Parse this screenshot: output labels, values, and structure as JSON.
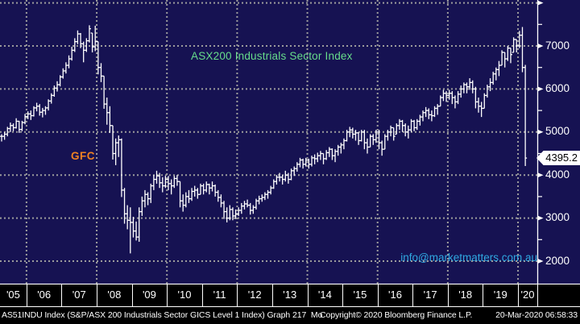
{
  "annotations": {
    "title": "ASX200 Industrials Sector Index",
    "gfc": "GFC",
    "email": "info@marketmatters.com.au",
    "last_price": "4395.2"
  },
  "status_bar": {
    "left": "AS51INDU Index (S&P/ASX 200 Industrials Sector GICS Level 1 Index) Graph 217  Mo",
    "center": "Copyright© 2020 Bloomberg Finance L.P.",
    "right": "20-Mar-2020 06:58:33"
  },
  "colors": {
    "background": "#161252",
    "grid": "#9c9c9c",
    "bars": "#ffffff",
    "title_green": "#67dd8b",
    "gfc_orange": "#f08222",
    "email_blue": "#2fa8e1",
    "strip_black": "#000000",
    "price_tag_bg": "#ffffff"
  },
  "chart_data": {
    "type": "ohlc_bar",
    "title": "ASX200 Industrials Sector Index",
    "frequency": "monthly",
    "x_start": "2005-04",
    "x_end": "2020-03",
    "x_tick_labels": [
      "'05",
      "'06",
      "'07",
      "'08",
      "'09",
      "'10",
      "'11",
      "'12",
      "'13",
      "'14",
      "'15",
      "'16",
      "'17",
      "'18",
      "'19",
      "'20"
    ],
    "grid_vertical_every_years": 2,
    "ylim": [
      1480,
      8070
    ],
    "y_gridlines": [
      2000,
      3000,
      4000,
      5000,
      6000,
      7000,
      8000
    ],
    "y_ticks_labeled": [
      7000,
      6000,
      5000,
      4000,
      3000,
      2000
    ],
    "y_ticks_major": [
      8000,
      7000,
      6000,
      5000,
      4000,
      3000,
      2000
    ],
    "y_ticks_minor": [
      7500,
      6500,
      5500,
      4500,
      3500,
      2500
    ],
    "last_price": 4395.2,
    "legend_position": "none",
    "bars_hlc": [
      [
        4950,
        4780,
        4900
      ],
      [
        5000,
        4820,
        4950
      ],
      [
        5120,
        4900,
        5080
      ],
      [
        5220,
        5000,
        5150
      ],
      [
        5200,
        5020,
        5100
      ],
      [
        5320,
        5080,
        5250
      ],
      [
        5260,
        4980,
        5060
      ],
      [
        5260,
        5020,
        5220
      ],
      [
        5420,
        5180,
        5360
      ],
      [
        5480,
        5300,
        5420
      ],
      [
        5500,
        5280,
        5380
      ],
      [
        5600,
        5360,
        5560
      ],
      [
        5680,
        5480,
        5600
      ],
      [
        5650,
        5380,
        5460
      ],
      [
        5560,
        5340,
        5500
      ],
      [
        5600,
        5400,
        5560
      ],
      [
        5760,
        5500,
        5720
      ],
      [
        5900,
        5660,
        5850
      ],
      [
        6080,
        5820,
        6020
      ],
      [
        6180,
        5940,
        6100
      ],
      [
        6320,
        6060,
        6280
      ],
      [
        6480,
        6240,
        6420
      ],
      [
        6620,
        6360,
        6550
      ],
      [
        6780,
        6480,
        6700
      ],
      [
        6980,
        6660,
        6900
      ],
      [
        7180,
        6860,
        7100
      ],
      [
        7360,
        7040,
        7280
      ],
      [
        7300,
        6950,
        7050
      ],
      [
        7100,
        6620,
        6900
      ],
      [
        7180,
        6860,
        7120
      ],
      [
        7480,
        7080,
        7400
      ],
      [
        7300,
        6850,
        6980
      ],
      [
        7470,
        6880,
        7100
      ],
      [
        7100,
        6340,
        6500
      ],
      [
        6600,
        6160,
        6300
      ],
      [
        6300,
        5540,
        5650
      ],
      [
        5800,
        5170,
        5450
      ],
      [
        5600,
        4980,
        5150
      ],
      [
        5150,
        4360,
        4500
      ],
      [
        4850,
        4230,
        4750
      ],
      [
        4920,
        4420,
        4820
      ],
      [
        4850,
        3490,
        3650
      ],
      [
        3700,
        2870,
        3100
      ],
      [
        3300,
        2740,
        2950
      ],
      [
        3250,
        2180,
        2900
      ],
      [
        3030,
        2550,
        2700
      ],
      [
        2920,
        2480,
        2560
      ],
      [
        3250,
        2450,
        3150
      ],
      [
        3500,
        3050,
        3400
      ],
      [
        3650,
        3250,
        3550
      ],
      [
        3600,
        3300,
        3450
      ],
      [
        3800,
        3350,
        3750
      ],
      [
        4000,
        3650,
        3900
      ],
      [
        4100,
        3800,
        3980
      ],
      [
        4050,
        3700,
        3820
      ],
      [
        3950,
        3600,
        3750
      ],
      [
        3980,
        3700,
        3900
      ],
      [
        3980,
        3650,
        3800
      ],
      [
        3900,
        3550,
        3750
      ],
      [
        3980,
        3700,
        3920
      ],
      [
        4000,
        3750,
        3850
      ],
      [
        3850,
        3250,
        3400
      ],
      [
        3550,
        3150,
        3300
      ],
      [
        3600,
        3250,
        3500
      ],
      [
        3650,
        3350,
        3450
      ],
      [
        3700,
        3400,
        3620
      ],
      [
        3750,
        3500,
        3650
      ],
      [
        3700,
        3450,
        3550
      ],
      [
        3800,
        3550,
        3750
      ],
      [
        3800,
        3550,
        3650
      ],
      [
        3850,
        3600,
        3780
      ],
      [
        3800,
        3550,
        3700
      ],
      [
        3850,
        3620,
        3750
      ],
      [
        3780,
        3500,
        3600
      ],
      [
        3650,
        3380,
        3480
      ],
      [
        3550,
        3250,
        3350
      ],
      [
        3400,
        2980,
        3150
      ],
      [
        3250,
        2900,
        3000
      ],
      [
        3300,
        2950,
        3200
      ],
      [
        3250,
        2950,
        3050
      ],
      [
        3200,
        2980,
        3100
      ],
      [
        3250,
        3050,
        3180
      ],
      [
        3350,
        3100,
        3280
      ],
      [
        3400,
        3200,
        3330
      ],
      [
        3430,
        3250,
        3300
      ],
      [
        3350,
        3080,
        3180
      ],
      [
        3300,
        3100,
        3250
      ],
      [
        3450,
        3200,
        3400
      ],
      [
        3520,
        3320,
        3450
      ],
      [
        3550,
        3380,
        3480
      ],
      [
        3600,
        3420,
        3550
      ],
      [
        3650,
        3450,
        3600
      ],
      [
        3750,
        3550,
        3700
      ],
      [
        3900,
        3680,
        3850
      ],
      [
        4000,
        3780,
        3950
      ],
      [
        4050,
        3850,
        3950
      ],
      [
        4000,
        3780,
        3900
      ],
      [
        4100,
        3850,
        4000
      ],
      [
        4050,
        3800,
        3900
      ],
      [
        4150,
        3880,
        4100
      ],
      [
        4200,
        3980,
        4150
      ],
      [
        4300,
        4080,
        4250
      ],
      [
        4400,
        4180,
        4350
      ],
      [
        4380,
        4150,
        4250
      ],
      [
        4400,
        4200,
        4350
      ],
      [
        4380,
        4150,
        4250
      ],
      [
        4450,
        4200,
        4400
      ],
      [
        4480,
        4250,
        4380
      ],
      [
        4520,
        4300,
        4450
      ],
      [
        4560,
        4350,
        4500
      ],
      [
        4500,
        4250,
        4380
      ],
      [
        4580,
        4350,
        4520
      ],
      [
        4650,
        4420,
        4600
      ],
      [
        4620,
        4350,
        4450
      ],
      [
        4600,
        4300,
        4550
      ],
      [
        4700,
        4450,
        4650
      ],
      [
        4750,
        4500,
        4700
      ],
      [
        4850,
        4600,
        4800
      ],
      [
        5050,
        4780,
        5000
      ],
      [
        5120,
        4880,
        5050
      ],
      [
        5100,
        4850,
        4950
      ],
      [
        5050,
        4800,
        4980
      ],
      [
        5000,
        4700,
        4800
      ],
      [
        5050,
        4780,
        5000
      ],
      [
        5050,
        4600,
        4750
      ],
      [
        4850,
        4500,
        4650
      ],
      [
        4950,
        4650,
        4900
      ],
      [
        4950,
        4700,
        4820
      ],
      [
        5050,
        4750,
        5000
      ],
      [
        5050,
        4600,
        4750
      ],
      [
        4800,
        4450,
        4600
      ],
      [
        4950,
        4600,
        4900
      ],
      [
        5050,
        4800,
        5000
      ],
      [
        5150,
        4900,
        5100
      ],
      [
        5100,
        4800,
        4900
      ],
      [
        5200,
        4950,
        5150
      ],
      [
        5300,
        5050,
        5250
      ],
      [
        5280,
        5000,
        5150
      ],
      [
        5200,
        4900,
        5000
      ],
      [
        5150,
        4850,
        5050
      ],
      [
        5300,
        5000,
        5250
      ],
      [
        5280,
        5020,
        5100
      ],
      [
        5300,
        5050,
        5250
      ],
      [
        5400,
        5150,
        5350
      ],
      [
        5500,
        5250,
        5450
      ],
      [
        5580,
        5350,
        5500
      ],
      [
        5550,
        5300,
        5400
      ],
      [
        5500,
        5250,
        5380
      ],
      [
        5600,
        5350,
        5550
      ],
      [
        5650,
        5400,
        5600
      ],
      [
        5850,
        5600,
        5800
      ],
      [
        5980,
        5720,
        5900
      ],
      [
        5950,
        5700,
        5850
      ],
      [
        5980,
        5750,
        5900
      ],
      [
        5950,
        5650,
        5800
      ],
      [
        5850,
        5550,
        5700
      ],
      [
        5950,
        5650,
        5880
      ],
      [
        6080,
        5800,
        6000
      ],
      [
        6150,
        5900,
        6100
      ],
      [
        6150,
        5900,
        6050
      ],
      [
        6250,
        5980,
        6150
      ],
      [
        6200,
        5900,
        6000
      ],
      [
        6050,
        5550,
        5700
      ],
      [
        5800,
        5450,
        5600
      ],
      [
        5700,
        5350,
        5550
      ],
      [
        5900,
        5550,
        5850
      ],
      [
        6100,
        5800,
        6050
      ],
      [
        6250,
        5950,
        6150
      ],
      [
        6400,
        6100,
        6350
      ],
      [
        6500,
        6200,
        6450
      ],
      [
        6650,
        6300,
        6550
      ],
      [
        6900,
        6550,
        6850
      ],
      [
        6850,
        6500,
        6700
      ],
      [
        7000,
        6650,
        6950
      ],
      [
        6950,
        6600,
        6800
      ],
      [
        7200,
        6850,
        7150
      ],
      [
        7150,
        6850,
        7000
      ],
      [
        7350,
        6950,
        7250
      ],
      [
        7440,
        6390,
        6500
      ],
      [
        6560,
        4210,
        4395.2
      ]
    ]
  }
}
